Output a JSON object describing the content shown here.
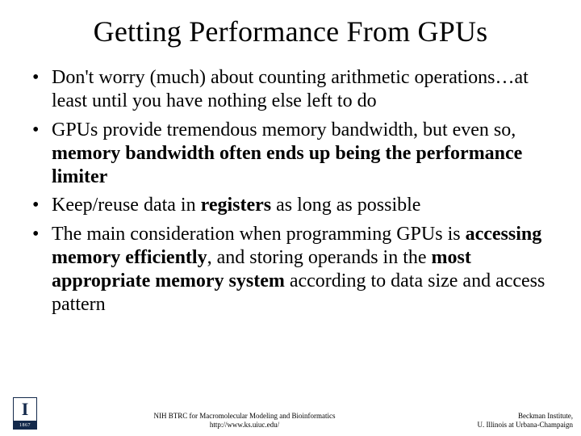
{
  "title": "Getting Performance From GPUs",
  "bullets": {
    "b1_a": "Don't worry (much) about counting arithmetic operations…at least until you have nothing else left to do",
    "b2_a": "GPUs provide tremendous memory bandwidth, but even so, ",
    "b2_b": "memory bandwidth often ends up being the performance limiter",
    "b3_a": "Keep/reuse data in ",
    "b3_b": "registers",
    "b3_c": " as long as possible",
    "b4_a": "The main consideration when programming GPUs is ",
    "b4_b": "accessing memory efficiently",
    "b4_c": ", and storing operands in the ",
    "b4_d": "most appropriate memory system",
    "b4_e": " according to data size and access pattern"
  },
  "footer": {
    "logo_letter": "I",
    "logo_year": "1867",
    "center_line1": "NIH BTRC for Macromolecular Modeling and Bioinformatics",
    "center_line2": "http://www.ks.uiuc.edu/",
    "right_line1": "Beckman Institute,",
    "right_line2": "U. Illinois at Urbana-Champaign"
  }
}
